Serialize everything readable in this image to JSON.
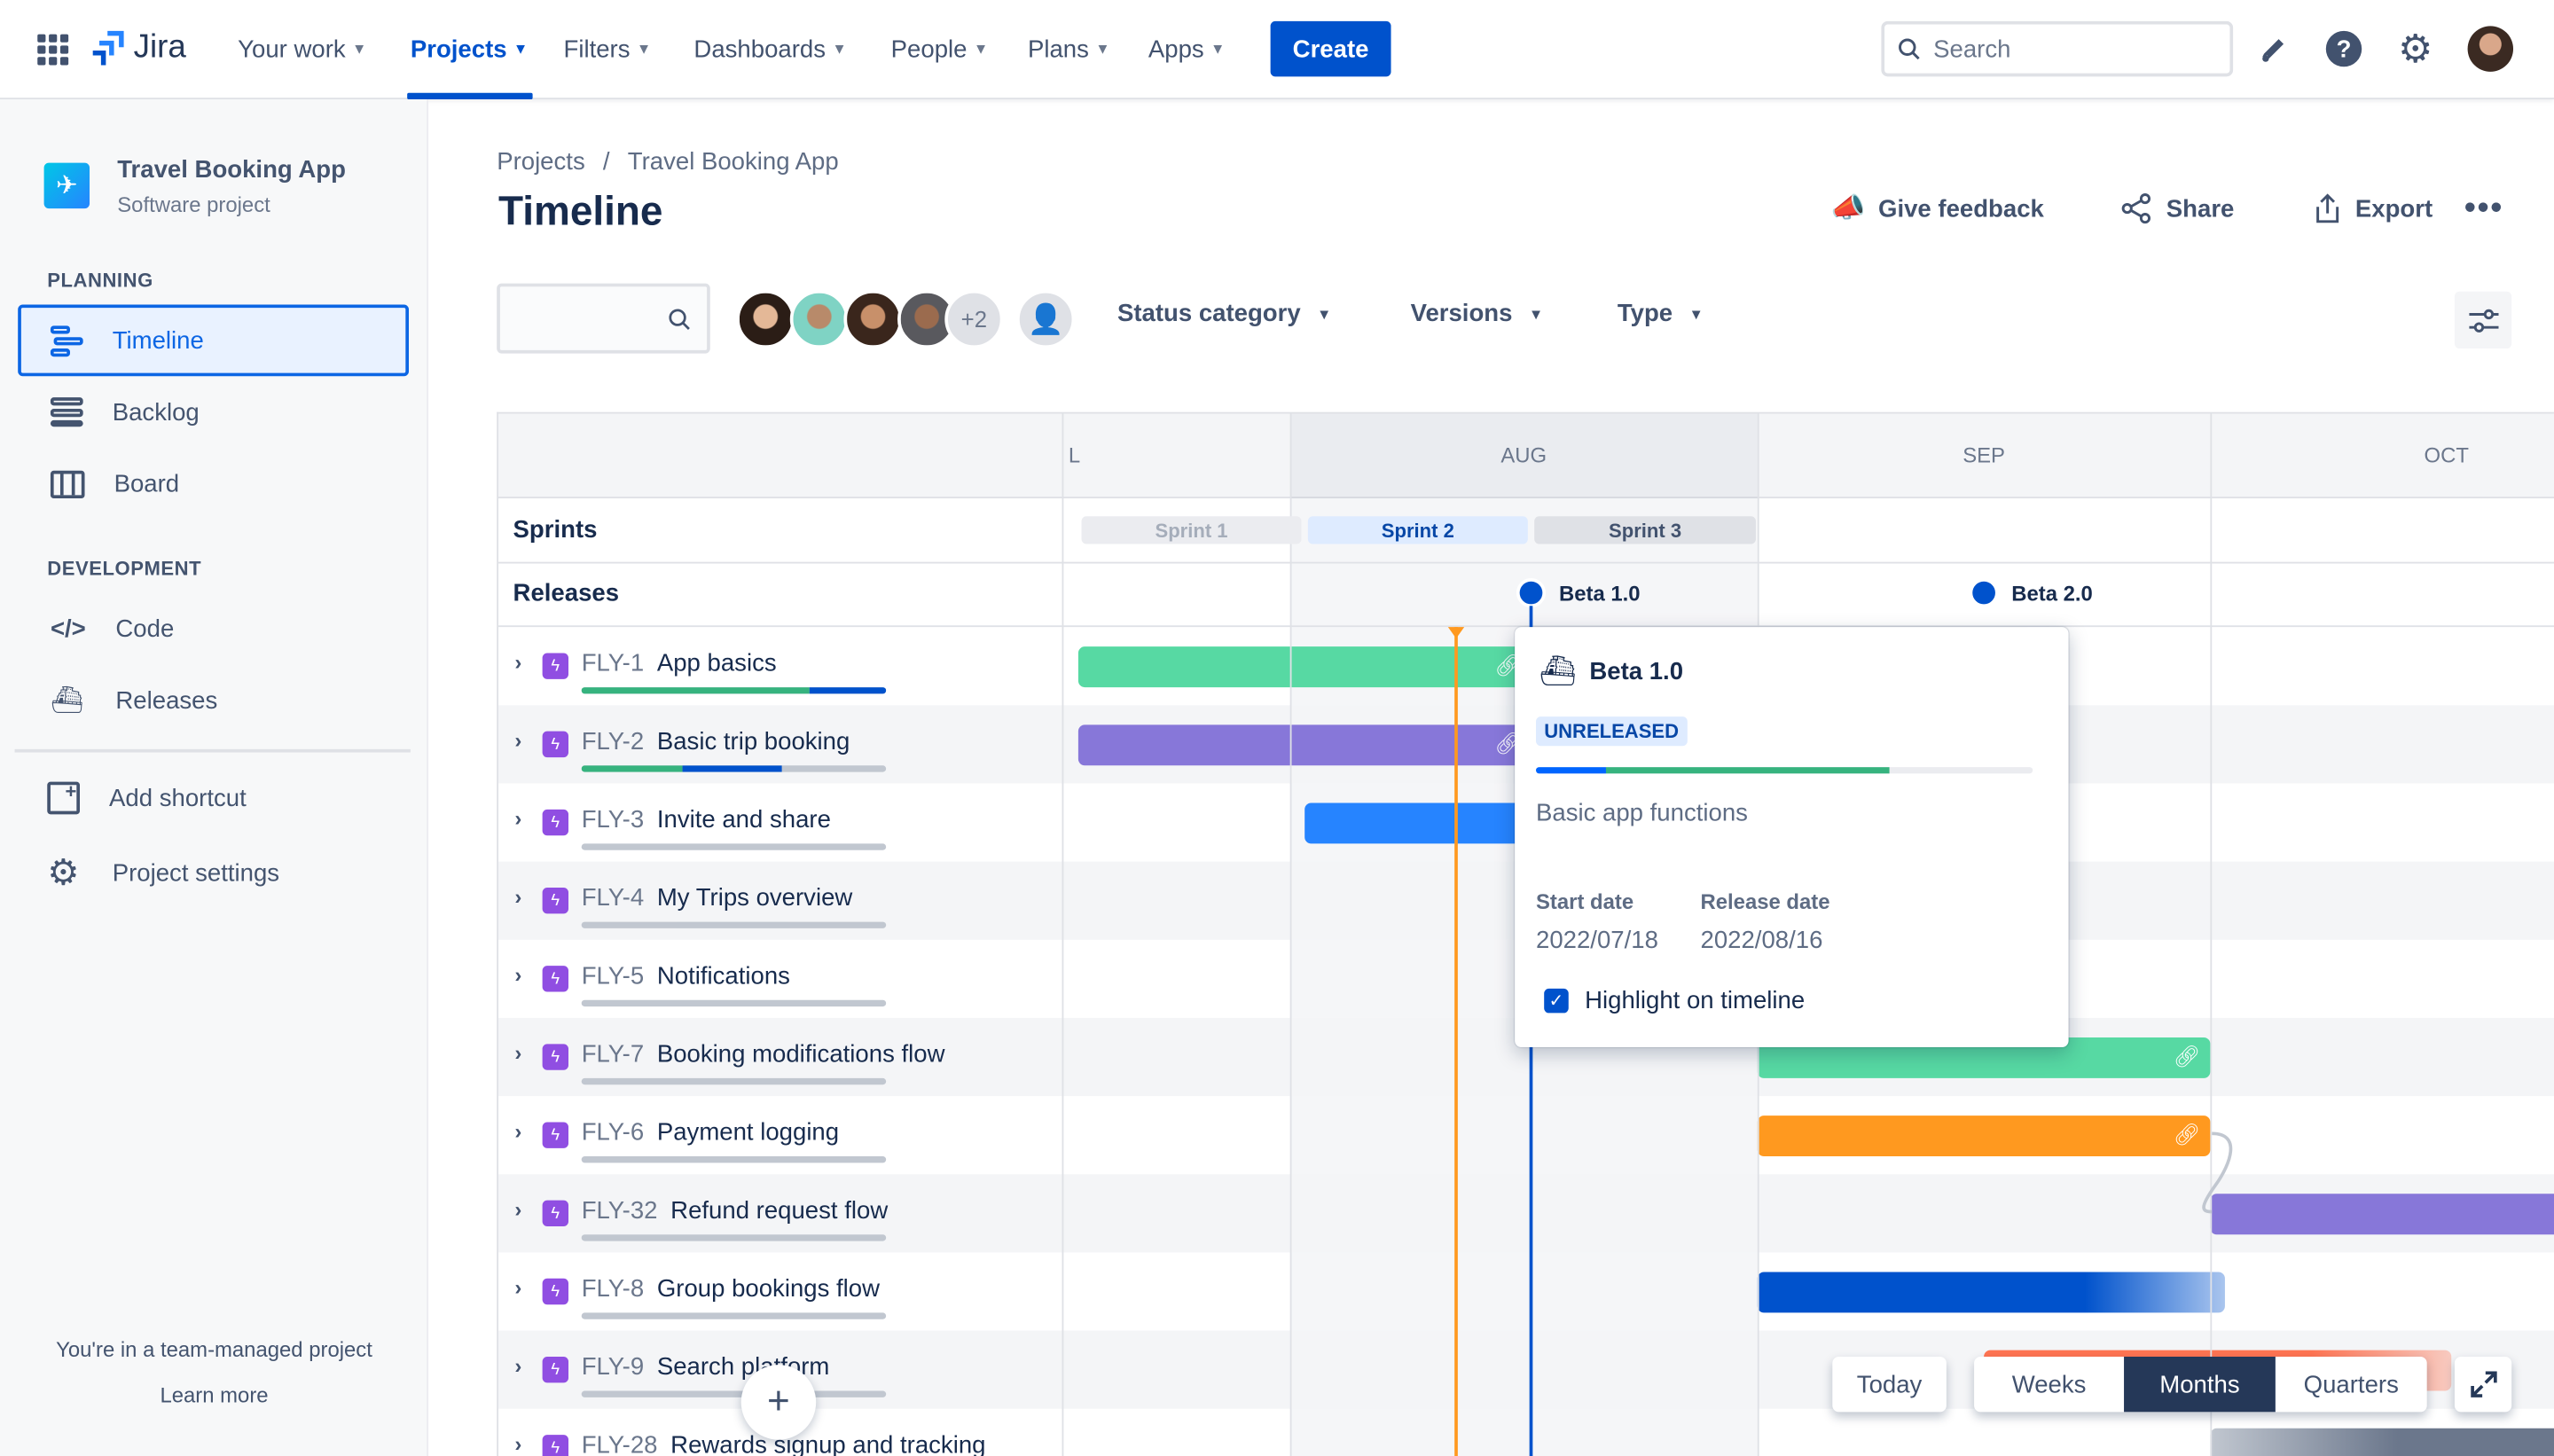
{
  "topnav": {
    "product": "Jira",
    "items": [
      {
        "label": "Your work",
        "active": false
      },
      {
        "label": "Projects",
        "active": true
      },
      {
        "label": "Filters",
        "active": false
      },
      {
        "label": "Dashboards",
        "active": false
      },
      {
        "label": "People",
        "active": false
      },
      {
        "label": "Plans",
        "active": false
      },
      {
        "label": "Apps",
        "active": false
      }
    ],
    "create_label": "Create",
    "search_placeholder": "Search",
    "icons": [
      "app-switcher-icon",
      "notifications-icon",
      "help-icon",
      "settings-icon",
      "profile-avatar"
    ]
  },
  "sidebar": {
    "project_name": "Travel Booking App",
    "project_type": "Software project",
    "planning_heading": "PLANNING",
    "planning_items": [
      {
        "label": "Timeline",
        "icon": "timeline-icon",
        "active": true
      },
      {
        "label": "Backlog",
        "icon": "backlog-icon"
      },
      {
        "label": "Board",
        "icon": "board-icon"
      }
    ],
    "development_heading": "DEVELOPMENT",
    "development_items": [
      {
        "label": "Code",
        "icon": "code-icon"
      },
      {
        "label": "Releases",
        "icon": "releases-icon"
      }
    ],
    "add_shortcut": "Add shortcut",
    "project_settings": "Project settings",
    "footer_text": "You're in a team-managed project",
    "learn_more": "Learn more"
  },
  "header": {
    "breadcrumb": [
      "Projects",
      "Travel Booking App"
    ],
    "title": "Timeline",
    "give_feedback": "Give feedback",
    "share": "Share",
    "export": "Export"
  },
  "toolbar": {
    "more_avatars": "+2",
    "filters": [
      "Status category",
      "Versions",
      "Type"
    ]
  },
  "timeline": {
    "months": [
      "L",
      "AUG",
      "SEP",
      "OCT"
    ],
    "sprints_label": "Sprints",
    "releases_label": "Releases",
    "sprints": [
      {
        "name": "Sprint 1",
        "state": "closed"
      },
      {
        "name": "Sprint 2",
        "state": "active"
      },
      {
        "name": "Sprint 3",
        "state": "future"
      }
    ],
    "releases": [
      {
        "name": "Beta 1.0",
        "date": "2022-08-16"
      },
      {
        "name": "Beta 2.0",
        "date": "2022-09-15"
      }
    ],
    "today": "2022-08-12",
    "issues": [
      {
        "key": "FLY-1",
        "summary": "App basics",
        "done": 75,
        "in_progress": 25,
        "start": "2022-07-18",
        "end": "2022-08-16",
        "color": "#57d9a3",
        "linked": true
      },
      {
        "key": "FLY-2",
        "summary": "Basic trip booking",
        "done": 33,
        "in_progress": 33,
        "start": "2022-07-18",
        "end": "2022-08-16",
        "color": "#8777d9",
        "linked": true
      },
      {
        "key": "FLY-3",
        "summary": "Invite and share",
        "done": 0,
        "in_progress": 0,
        "start": "2022-08-02",
        "end": "2022-08-16",
        "color": "#2684ff",
        "linked": false
      },
      {
        "key": "FLY-4",
        "summary": "My Trips overview",
        "done": 0,
        "in_progress": 0
      },
      {
        "key": "FLY-5",
        "summary": "Notifications",
        "done": 0,
        "in_progress": 0
      },
      {
        "key": "FLY-7",
        "summary": "Booking modifications flow",
        "done": 0,
        "in_progress": 0,
        "start": "2022-09-01",
        "end": "2022-09-30",
        "color": "#57d9a3",
        "linked": true
      },
      {
        "key": "FLY-6",
        "summary": "Payment logging",
        "done": 0,
        "in_progress": 0,
        "start": "2022-09-01",
        "end": "2022-09-30",
        "color": "#ff991f",
        "linked": true
      },
      {
        "key": "FLY-32",
        "summary": "Refund request flow",
        "done": 0,
        "in_progress": 0,
        "start": "2022-10-01",
        "end": "2022-10-31",
        "color": "#8777d9",
        "linked": false
      },
      {
        "key": "FLY-8",
        "summary": "Group bookings flow",
        "done": 0,
        "in_progress": 0,
        "start": "2022-09-01",
        "end": "2022-10-01",
        "color": "#0052cc",
        "linked": false,
        "fade": true
      },
      {
        "key": "FLY-9",
        "summary": "Search platform",
        "done": 0,
        "in_progress": 0,
        "start": "2022-09-16",
        "end": "2022-10-16",
        "color": "#ff7452",
        "linked": false,
        "fade": true
      },
      {
        "key": "FLY-28",
        "summary": "Rewards signup and tracking",
        "done": 0,
        "in_progress": 0,
        "start": "2022-10-01",
        "end": "2022-10-31",
        "color": "#6b778c",
        "linked": false,
        "fadeIn": true
      }
    ]
  },
  "popup": {
    "title": "Beta 1.0",
    "status": "UNRELEASED",
    "progress_in_progress": 14,
    "progress_done": 57,
    "description": "Basic app functions",
    "start_label": "Start date",
    "start_value": "2022/07/18",
    "release_label": "Release date",
    "release_value": "2022/08/16",
    "highlight_label": "Highlight on timeline",
    "highlight_checked": true
  },
  "controls": {
    "today": "Today",
    "scales": [
      "Weeks",
      "Months",
      "Quarters"
    ],
    "selected_scale": "Months"
  },
  "colors": {
    "brand": "#0052cc",
    "today_line": "#ff991f",
    "release": "#0052cc",
    "epic": "#904ee2"
  }
}
